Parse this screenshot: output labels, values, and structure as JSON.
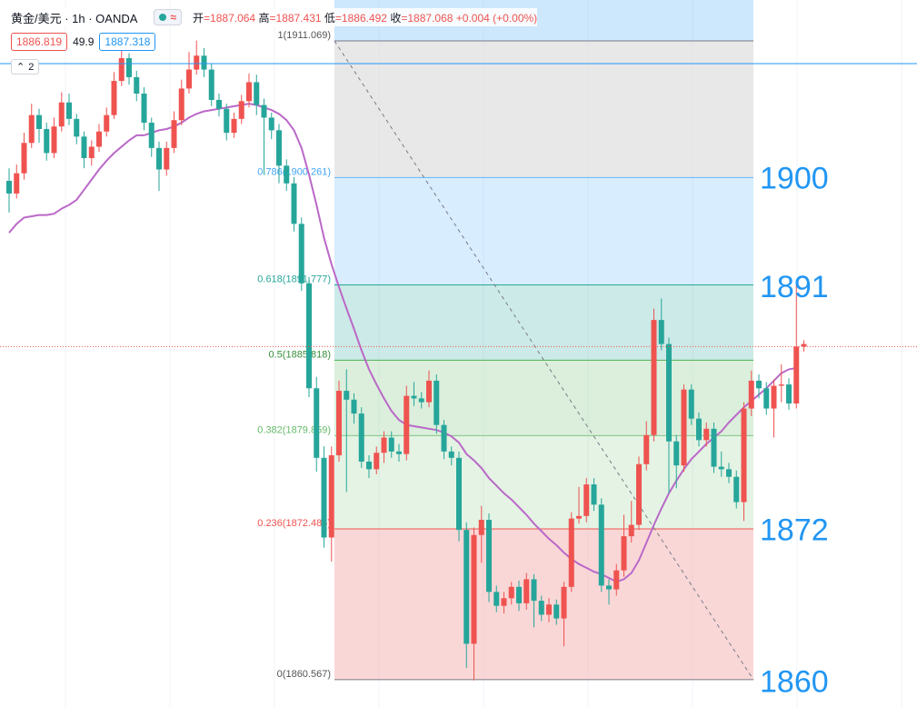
{
  "header": {
    "symbol": "黄金/美元 · 1h · OANDA",
    "wave_icon": "≈",
    "open_label": "开",
    "open": "1887.064",
    "high_label": "高",
    "high": "1887.431",
    "low_label": "低",
    "low": "1886.492",
    "close_label": "收",
    "close": "1887.068",
    "change": "+0.004 (+0.00%)",
    "sell_price": "1886.819",
    "spread": "49.9",
    "buy_price": "1887.318",
    "indicator_count": "2"
  },
  "colors": {
    "up": "#ef5350",
    "down": "#26a69a",
    "ma": "#ba68c8",
    "fib_top": "#90caf9",
    "fib_mid": "#80cbc4",
    "fib_low": "#a5d6a7",
    "fib_bottom": "#ef9a9a",
    "label_blue": "#2196f3"
  },
  "chart_data": {
    "type": "candlestick",
    "title": "",
    "ylim": [
      1858.4,
      1914.3
    ],
    "current_price_line": 1886.9,
    "fib_levels": [
      {
        "ratio": "1",
        "price": 1911.069,
        "label": "1(1911.069)"
      },
      {
        "ratio": "0.786",
        "price": 1900.261,
        "label": "0.786(1900.261)"
      },
      {
        "ratio": "0.618",
        "price": 1891.777,
        "label": "0.618(1891.777)"
      },
      {
        "ratio": "0.5",
        "price": 1885.818,
        "label": "0.5(1885.818)"
      },
      {
        "ratio": "0.382",
        "price": 1879.859,
        "label": "0.382(1879.859)"
      },
      {
        "ratio": "0.236",
        "price": 1872.485,
        "label": "0.236(1872.485)"
      },
      {
        "ratio": "0",
        "price": 1860.567,
        "label": "0(1860.567)"
      }
    ],
    "price_annotations": [
      {
        "text": "1900",
        "price": 1900.4
      },
      {
        "text": "1891",
        "price": 1891.8
      },
      {
        "text": "1872",
        "price": 1872.6
      },
      {
        "text": "1860",
        "price": 1860.6
      }
    ],
    "candles": [
      [
        1900.0,
        1899.0,
        1901.0,
        1897.5
      ],
      [
        1899.0,
        1900.6,
        1901.3,
        1898.6
      ],
      [
        1900.6,
        1903.0,
        1903.8,
        1900.1
      ],
      [
        1903.0,
        1905.2,
        1906.1,
        1902.6
      ],
      [
        1905.2,
        1904.1,
        1905.7,
        1903.0
      ],
      [
        1904.1,
        1902.2,
        1904.6,
        1901.6
      ],
      [
        1902.2,
        1904.3,
        1905.0,
        1901.8
      ],
      [
        1904.3,
        1906.2,
        1907.0,
        1903.9
      ],
      [
        1906.2,
        1904.9,
        1906.9,
        1904.4
      ],
      [
        1904.9,
        1903.5,
        1905.3,
        1902.9
      ],
      [
        1903.5,
        1901.8,
        1903.9,
        1901.0
      ],
      [
        1901.8,
        1902.7,
        1903.2,
        1901.2
      ],
      [
        1902.7,
        1903.9,
        1904.5,
        1902.3
      ],
      [
        1903.9,
        1905.2,
        1905.8,
        1903.5
      ],
      [
        1905.2,
        1907.9,
        1908.6,
        1904.9
      ],
      [
        1907.9,
        1909.7,
        1910.6,
        1907.5
      ],
      [
        1909.7,
        1908.2,
        1910.1,
        1907.6
      ],
      [
        1908.2,
        1906.9,
        1908.7,
        1906.3
      ],
      [
        1906.9,
        1904.6,
        1907.4,
        1904.0
      ],
      [
        1904.6,
        1902.6,
        1905.0,
        1901.9
      ],
      [
        1902.6,
        1900.9,
        1903.1,
        1899.2
      ],
      [
        1900.9,
        1902.6,
        1903.1,
        1900.4
      ],
      [
        1902.6,
        1904.8,
        1905.5,
        1902.2
      ],
      [
        1904.8,
        1907.3,
        1908.0,
        1904.4
      ],
      [
        1907.3,
        1908.8,
        1910.2,
        1906.9
      ],
      [
        1908.8,
        1909.9,
        1911.1,
        1908.4
      ],
      [
        1909.9,
        1908.8,
        1910.5,
        1908.2
      ],
      [
        1908.8,
        1906.4,
        1909.3,
        1905.9
      ],
      [
        1906.4,
        1905.7,
        1906.9,
        1905.1
      ],
      [
        1905.7,
        1903.8,
        1906.1,
        1903.2
      ],
      [
        1903.8,
        1904.9,
        1905.4,
        1903.4
      ],
      [
        1904.9,
        1906.3,
        1906.8,
        1904.5
      ],
      [
        1906.3,
        1907.8,
        1908.5,
        1905.8
      ],
      [
        1907.8,
        1906.0,
        1908.4,
        1905.2
      ],
      [
        1906.0,
        1905.0,
        1906.5,
        1900.5
      ],
      [
        1905.0,
        1904.0,
        1905.4,
        1903.3
      ],
      [
        1904.0,
        1901.2,
        1904.5,
        1899.8
      ],
      [
        1901.2,
        1899.8,
        1901.7,
        1899.2
      ],
      [
        1899.8,
        1896.6,
        1900.3,
        1896.0
      ],
      [
        1896.6,
        1891.9,
        1897.1,
        1891.3
      ],
      [
        1891.9,
        1883.6,
        1892.4,
        1882.9
      ],
      [
        1883.6,
        1878.1,
        1884.5,
        1877.0
      ],
      [
        1878.1,
        1871.8,
        1879.0,
        1871.0
      ],
      [
        1871.8,
        1878.3,
        1879.0,
        1869.9
      ],
      [
        1878.3,
        1883.4,
        1884.2,
        1877.8
      ],
      [
        1883.4,
        1882.7,
        1885.1,
        1875.4
      ],
      [
        1882.7,
        1881.6,
        1883.2,
        1880.8
      ],
      [
        1881.6,
        1877.8,
        1882.1,
        1877.3
      ],
      [
        1877.8,
        1877.2,
        1878.3,
        1876.5
      ],
      [
        1877.2,
        1878.5,
        1879.0,
        1876.8
      ],
      [
        1878.5,
        1879.7,
        1880.2,
        1877.7
      ],
      [
        1879.7,
        1878.6,
        1880.2,
        1878.1
      ],
      [
        1878.6,
        1878.4,
        1879.2,
        1877.8
      ],
      [
        1878.4,
        1883.0,
        1883.8,
        1877.9
      ],
      [
        1883.0,
        1882.8,
        1884.1,
        1882.2
      ],
      [
        1882.8,
        1882.5,
        1883.3,
        1882.0
      ],
      [
        1882.5,
        1884.2,
        1885.0,
        1882.1
      ],
      [
        1884.2,
        1880.7,
        1884.7,
        1880.0
      ],
      [
        1880.7,
        1878.6,
        1881.1,
        1878.0
      ],
      [
        1878.6,
        1878.1,
        1879.0,
        1877.5
      ],
      [
        1878.1,
        1872.4,
        1878.6,
        1871.5
      ],
      [
        1872.4,
        1863.4,
        1873.0,
        1861.5
      ],
      [
        1863.4,
        1872.0,
        1872.6,
        1860.5
      ],
      [
        1872.0,
        1873.2,
        1874.3,
        1869.8
      ],
      [
        1873.2,
        1867.5,
        1873.7,
        1866.7
      ],
      [
        1867.5,
        1866.4,
        1868.0,
        1865.9
      ],
      [
        1866.4,
        1867.0,
        1867.5,
        1865.8
      ],
      [
        1867.0,
        1867.9,
        1868.3,
        1866.5
      ],
      [
        1867.9,
        1866.6,
        1868.4,
        1866.0
      ],
      [
        1866.6,
        1868.5,
        1869.0,
        1866.1
      ],
      [
        1868.5,
        1866.8,
        1868.9,
        1864.7
      ],
      [
        1866.8,
        1865.7,
        1867.2,
        1865.2
      ],
      [
        1865.7,
        1866.5,
        1867.0,
        1865.1
      ],
      [
        1866.5,
        1865.4,
        1866.9,
        1864.9
      ],
      [
        1865.4,
        1867.9,
        1868.3,
        1863.2
      ],
      [
        1867.9,
        1873.3,
        1873.8,
        1867.5
      ],
      [
        1873.3,
        1873.5,
        1875.8,
        1872.9
      ],
      [
        1873.5,
        1876.0,
        1876.5,
        1873.0
      ],
      [
        1876.0,
        1874.4,
        1876.5,
        1873.9
      ],
      [
        1874.4,
        1868.0,
        1874.9,
        1867.5
      ],
      [
        1868.0,
        1867.7,
        1868.5,
        1866.5
      ],
      [
        1867.7,
        1869.2,
        1869.7,
        1867.2
      ],
      [
        1869.2,
        1871.9,
        1873.6,
        1868.7
      ],
      [
        1871.9,
        1872.8,
        1874.7,
        1871.4
      ],
      [
        1872.8,
        1877.6,
        1878.2,
        1872.4
      ],
      [
        1877.6,
        1879.9,
        1881.0,
        1877.1
      ],
      [
        1879.9,
        1889.0,
        1889.9,
        1879.4
      ],
      [
        1889.0,
        1887.1,
        1890.7,
        1886.6
      ],
      [
        1887.1,
        1879.4,
        1887.6,
        1875.3
      ],
      [
        1879.4,
        1877.5,
        1879.9,
        1875.7
      ],
      [
        1877.5,
        1883.5,
        1883.9,
        1877.0
      ],
      [
        1883.5,
        1881.2,
        1883.9,
        1880.7
      ],
      [
        1881.2,
        1879.5,
        1881.7,
        1879.0
      ],
      [
        1879.5,
        1880.4,
        1880.9,
        1879.0
      ],
      [
        1880.4,
        1877.4,
        1880.9,
        1876.9
      ],
      [
        1877.4,
        1877.2,
        1878.6,
        1876.6
      ],
      [
        1877.2,
        1876.6,
        1877.7,
        1876.1
      ],
      [
        1876.6,
        1874.6,
        1877.1,
        1874.1
      ],
      [
        1874.6,
        1882.0,
        1882.5,
        1873.1
      ],
      [
        1882.0,
        1884.2,
        1885.0,
        1881.4
      ],
      [
        1884.2,
        1883.6,
        1884.7,
        1882.8
      ],
      [
        1883.6,
        1882.0,
        1884.1,
        1881.5
      ],
      [
        1882.0,
        1883.8,
        1884.3,
        1879.7
      ],
      [
        1883.8,
        1883.9,
        1885.5,
        1882.5
      ],
      [
        1883.9,
        1882.4,
        1884.4,
        1881.9
      ],
      [
        1882.4,
        1886.9,
        1891.8,
        1882.0
      ],
      [
        1886.9,
        1887.1,
        1887.4,
        1886.5
      ]
    ],
    "ma": [
      1895.9,
      1896.6,
      1897.1,
      1897.2,
      1897.3,
      1897.3,
      1897.4,
      1897.8,
      1898.1,
      1898.5,
      1899.3,
      1900.1,
      1900.9,
      1901.6,
      1902.2,
      1902.7,
      1903.2,
      1903.6,
      1903.6,
      1903.8,
      1904.0,
      1904.1,
      1904.3,
      1904.6,
      1905.0,
      1905.3,
      1905.5,
      1905.6,
      1905.7,
      1905.8,
      1905.9,
      1906.0,
      1906.1,
      1906.0,
      1905.8,
      1905.6,
      1905.3,
      1904.8,
      1904.0,
      1902.6,
      1900.5,
      1898.1,
      1895.5,
      1893.4,
      1891.6,
      1889.9,
      1888.3,
      1886.6,
      1885.1,
      1883.9,
      1882.8,
      1881.8,
      1881.1,
      1880.7,
      1880.6,
      1880.5,
      1880.4,
      1880.3,
      1880.1,
      1879.8,
      1879.3,
      1878.4,
      1877.9,
      1877.3,
      1876.5,
      1875.9,
      1875.3,
      1874.8,
      1874.2,
      1873.6,
      1872.9,
      1872.3,
      1871.7,
      1871.2,
      1870.6,
      1870.1,
      1869.7,
      1869.4,
      1869.1,
      1868.9,
      1868.6,
      1868.3,
      1868.5,
      1869.0,
      1870.0,
      1871.4,
      1872.8,
      1874.1,
      1875.3,
      1876.3,
      1877.2,
      1878.0,
      1878.6,
      1879.2,
      1879.7,
      1880.2,
      1880.9,
      1881.5,
      1882.1,
      1882.6,
      1883.1,
      1883.6,
      1884.2,
      1884.8,
      1885.1,
      1885.2
    ]
  }
}
